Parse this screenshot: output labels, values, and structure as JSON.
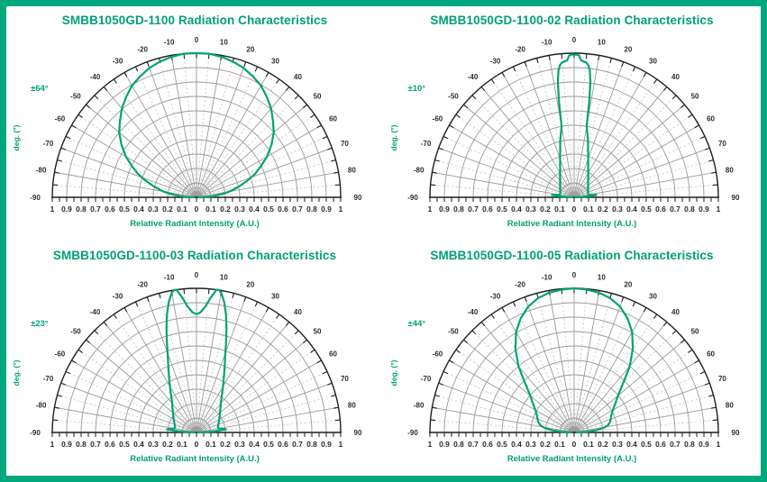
{
  "page": {
    "background": "#ffffff"
  },
  "colors": {
    "accent": "#00a077",
    "curve": "#00a376",
    "border": "#00a87e",
    "grid_major": "#9a9a9a",
    "grid_minor": "#c4c4c4",
    "axis": "#1f1f1f",
    "tick_text": "#2a2a2a",
    "angle_text": "#2e2e2e"
  },
  "chart_data": [
    {
      "type": "line",
      "coordinate_system": "polar-semicircle",
      "title": "SMBB1050GD-1100 Radiation Characteristics",
      "beam_half_angle_label": "±64°",
      "angle_axis": {
        "label": "deg. (°)",
        "tick_values": [
          -90,
          -80,
          -70,
          -60,
          -50,
          -40,
          -30,
          -20,
          -10,
          0,
          10,
          20,
          30,
          40,
          50,
          60,
          70,
          80,
          90
        ],
        "minor_tick_step": 5
      },
      "radius_axis": {
        "label": "Relative Radiant Intensity (A.U.)",
        "range": [
          0,
          1
        ],
        "tick_labels": [
          "1",
          "0.9",
          "0.8",
          "0.7",
          "0.6",
          "0.5",
          "0.4",
          "0.3",
          "0.2",
          "0.1",
          "0",
          "0.1",
          "0.2",
          "0.3",
          "0.4",
          "0.5",
          "0.6",
          "0.7",
          "0.8",
          "0.9",
          "1"
        ]
      },
      "series": [
        {
          "name": "relative radiant intensity",
          "points": [
            [
              -90,
              0.02
            ],
            [
              -88,
              0.07
            ],
            [
              -86,
              0.115
            ],
            [
              -83,
              0.175
            ],
            [
              -80,
              0.235
            ],
            [
              -76,
              0.3
            ],
            [
              -72,
              0.37
            ],
            [
              -68,
              0.44
            ],
            [
              -64,
              0.5
            ],
            [
              -60,
              0.565
            ],
            [
              -55,
              0.635
            ],
            [
              -50,
              0.7
            ],
            [
              -45,
              0.75
            ],
            [
              -40,
              0.805
            ],
            [
              -35,
              0.85
            ],
            [
              -30,
              0.895
            ],
            [
              -25,
              0.925
            ],
            [
              -20,
              0.955
            ],
            [
              -15,
              0.975
            ],
            [
              -10,
              0.99
            ],
            [
              -5,
              1.0
            ],
            [
              0,
              1.0
            ],
            [
              5,
              1.0
            ],
            [
              10,
              0.99
            ],
            [
              15,
              0.975
            ],
            [
              20,
              0.955
            ],
            [
              25,
              0.925
            ],
            [
              30,
              0.895
            ],
            [
              35,
              0.85
            ],
            [
              40,
              0.805
            ],
            [
              45,
              0.75
            ],
            [
              50,
              0.7
            ],
            [
              55,
              0.635
            ],
            [
              60,
              0.565
            ],
            [
              64,
              0.5
            ],
            [
              68,
              0.44
            ],
            [
              72,
              0.37
            ],
            [
              76,
              0.3
            ],
            [
              80,
              0.235
            ],
            [
              83,
              0.175
            ],
            [
              86,
              0.115
            ],
            [
              88,
              0.07
            ],
            [
              90,
              0.02
            ]
          ]
        }
      ]
    },
    {
      "type": "line",
      "coordinate_system": "polar-semicircle",
      "title": "SMBB1050GD-1100-02 Radiation Characteristics",
      "beam_half_angle_label": "±10°",
      "angle_axis": {
        "label": "deg. (°)",
        "tick_values": [
          -90,
          -80,
          -70,
          -60,
          -50,
          -40,
          -30,
          -20,
          -10,
          0,
          10,
          20,
          30,
          40,
          50,
          60,
          70,
          80,
          90
        ],
        "minor_tick_step": 5
      },
      "radius_axis": {
        "label": "Relative Radiant Intensity (A.U.)",
        "range": [
          0,
          1
        ],
        "tick_labels": [
          "1",
          "0.9",
          "0.8",
          "0.7",
          "0.6",
          "0.5",
          "0.4",
          "0.3",
          "0.2",
          "0.1",
          "0",
          "0.1",
          "0.2",
          "0.3",
          "0.4",
          "0.5",
          "0.6",
          "0.7",
          "0.8",
          "0.9",
          "1"
        ]
      },
      "series": [
        {
          "name": "relative radiant intensity",
          "points": [
            [
              -90,
              0.01
            ],
            [
              -88,
              0.05
            ],
            [
              -86,
              0.11
            ],
            [
              -84,
              0.155
            ],
            [
              -82,
              0.125
            ],
            [
              -80,
              0.104
            ],
            [
              -78,
              0.1
            ],
            [
              -74,
              0.1
            ],
            [
              -70,
              0.103
            ],
            [
              -65,
              0.107
            ],
            [
              -60,
              0.112
            ],
            [
              -55,
              0.118
            ],
            [
              -50,
              0.127
            ],
            [
              -45,
              0.137
            ],
            [
              -40,
              0.151
            ],
            [
              -35,
              0.17
            ],
            [
              -30,
              0.195
            ],
            [
              -25,
              0.23
            ],
            [
              -20,
              0.285
            ],
            [
              -18,
              0.315
            ],
            [
              -16,
              0.35
            ],
            [
              -14,
              0.4
            ],
            [
              -12,
              0.445
            ],
            [
              -10,
              0.5
            ],
            [
              -9,
              0.67
            ],
            [
              -8,
              0.81
            ],
            [
              -7,
              0.89
            ],
            [
              -6,
              0.925
            ],
            [
              -5,
              0.94
            ],
            [
              -4,
              0.945
            ],
            [
              -3,
              0.95
            ],
            [
              -2.5,
              0.965
            ],
            [
              -2,
              0.985
            ],
            [
              -1,
              0.99
            ],
            [
              0,
              0.99
            ],
            [
              1,
              0.99
            ],
            [
              2,
              0.985
            ],
            [
              2.5,
              0.965
            ],
            [
              3,
              0.95
            ],
            [
              4,
              0.945
            ],
            [
              5,
              0.94
            ],
            [
              6,
              0.925
            ],
            [
              7,
              0.89
            ],
            [
              8,
              0.81
            ],
            [
              9,
              0.67
            ],
            [
              10,
              0.5
            ],
            [
              12,
              0.445
            ],
            [
              14,
              0.4
            ],
            [
              16,
              0.35
            ],
            [
              18,
              0.315
            ],
            [
              20,
              0.285
            ],
            [
              25,
              0.23
            ],
            [
              30,
              0.195
            ],
            [
              35,
              0.17
            ],
            [
              40,
              0.151
            ],
            [
              45,
              0.137
            ],
            [
              50,
              0.127
            ],
            [
              55,
              0.118
            ],
            [
              60,
              0.112
            ],
            [
              65,
              0.107
            ],
            [
              70,
              0.103
            ],
            [
              74,
              0.1
            ],
            [
              78,
              0.1
            ],
            [
              80,
              0.104
            ],
            [
              82,
              0.125
            ],
            [
              84,
              0.155
            ],
            [
              86,
              0.11
            ],
            [
              88,
              0.05
            ],
            [
              90,
              0.01
            ]
          ]
        }
      ]
    },
    {
      "type": "line",
      "coordinate_system": "polar-semicircle",
      "title": "SMBB1050GD-1100-03 Radiation Characteristics",
      "beam_half_angle_label": "±23°",
      "angle_axis": {
        "label": "deg. (°)",
        "tick_values": [
          -90,
          -80,
          -70,
          -60,
          -50,
          -40,
          -30,
          -20,
          -10,
          0,
          10,
          20,
          30,
          40,
          50,
          60,
          70,
          80,
          90
        ],
        "minor_tick_step": 5
      },
      "radius_axis": {
        "label": "Relative Radiant Intensity (A.U.)",
        "range": [
          0,
          1
        ],
        "tick_labels": [
          "1",
          "0.9",
          "0.8",
          "0.7",
          "0.6",
          "0.5",
          "0.4",
          "0.3",
          "0.2",
          "0.1",
          "0",
          "0.1",
          "0.2",
          "0.3",
          "0.4",
          "0.5",
          "0.6",
          "0.7",
          "0.8",
          "0.9",
          "1"
        ]
      },
      "series": [
        {
          "name": "relative radiant intensity",
          "points": [
            [
              -90,
              0.01
            ],
            [
              -88,
              0.06
            ],
            [
              -86,
              0.13
            ],
            [
              -84,
              0.205
            ],
            [
              -82,
              0.185
            ],
            [
              -80,
              0.158
            ],
            [
              -78,
              0.152
            ],
            [
              -74,
              0.155
            ],
            [
              -70,
              0.161
            ],
            [
              -65,
              0.171
            ],
            [
              -60,
              0.183
            ],
            [
              -55,
              0.196
            ],
            [
              -50,
              0.212
            ],
            [
              -45,
              0.235
            ],
            [
              -40,
              0.262
            ],
            [
              -36,
              0.295
            ],
            [
              -32,
              0.34
            ],
            [
              -28,
              0.4
            ],
            [
              -25,
              0.455
            ],
            [
              -23,
              0.5
            ],
            [
              -20,
              0.585
            ],
            [
              -18,
              0.665
            ],
            [
              -16,
              0.755
            ],
            [
              -14,
              0.845
            ],
            [
              -12,
              0.925
            ],
            [
              -10,
              0.985
            ],
            [
              -9,
              1.0
            ],
            [
              -8,
              1.0
            ],
            [
              -6,
              0.94
            ],
            [
              -4,
              0.875
            ],
            [
              -2,
              0.835
            ],
            [
              0,
              0.82
            ],
            [
              2,
              0.835
            ],
            [
              4,
              0.875
            ],
            [
              6,
              0.94
            ],
            [
              8,
              1.0
            ],
            [
              9,
              1.0
            ],
            [
              10,
              0.985
            ],
            [
              12,
              0.925
            ],
            [
              14,
              0.845
            ],
            [
              16,
              0.755
            ],
            [
              18,
              0.665
            ],
            [
              20,
              0.585
            ],
            [
              23,
              0.5
            ],
            [
              25,
              0.455
            ],
            [
              28,
              0.4
            ],
            [
              32,
              0.34
            ],
            [
              36,
              0.295
            ],
            [
              40,
              0.262
            ],
            [
              45,
              0.235
            ],
            [
              50,
              0.212
            ],
            [
              55,
              0.196
            ],
            [
              60,
              0.183
            ],
            [
              65,
              0.171
            ],
            [
              70,
              0.161
            ],
            [
              74,
              0.155
            ],
            [
              78,
              0.152
            ],
            [
              80,
              0.158
            ],
            [
              82,
              0.185
            ],
            [
              84,
              0.205
            ],
            [
              86,
              0.13
            ],
            [
              88,
              0.06
            ],
            [
              90,
              0.01
            ]
          ]
        }
      ]
    },
    {
      "type": "line",
      "coordinate_system": "polar-semicircle",
      "title": "SMBB1050GD-1100-05 Radiation Characteristics",
      "beam_half_angle_label": "±44°",
      "angle_axis": {
        "label": "deg. (°)",
        "tick_values": [
          -90,
          -80,
          -70,
          -60,
          -50,
          -40,
          -30,
          -20,
          -10,
          0,
          10,
          20,
          30,
          40,
          50,
          60,
          70,
          80,
          90
        ],
        "minor_tick_step": 5
      },
      "radius_axis": {
        "label": "Relative Radiant Intensity (A.U.)",
        "range": [
          0,
          1
        ],
        "tick_labels": [
          "1",
          "0.9",
          "0.8",
          "0.7",
          "0.6",
          "0.5",
          "0.4",
          "0.3",
          "0.2",
          "0.1",
          "0",
          "0.1",
          "0.2",
          "0.3",
          "0.4",
          "0.5",
          "0.6",
          "0.7",
          "0.8",
          "0.9",
          "1"
        ]
      },
      "series": [
        {
          "name": "relative radiant intensity",
          "points": [
            [
              -90,
              0.02
            ],
            [
              -87,
              0.09
            ],
            [
              -84,
              0.16
            ],
            [
              -81,
              0.21
            ],
            [
              -78,
              0.24
            ],
            [
              -74,
              0.258
            ],
            [
              -70,
              0.27
            ],
            [
              -65,
              0.285
            ],
            [
              -60,
              0.31
            ],
            [
              -56,
              0.34
            ],
            [
              -52,
              0.375
            ],
            [
              -48,
              0.425
            ],
            [
              -44,
              0.5
            ],
            [
              -40,
              0.6
            ],
            [
              -35,
              0.71
            ],
            [
              -30,
              0.805
            ],
            [
              -25,
              0.875
            ],
            [
              -20,
              0.93
            ],
            [
              -15,
              0.965
            ],
            [
              -10,
              0.985
            ],
            [
              -5,
              0.995
            ],
            [
              0,
              1.0
            ],
            [
              5,
              0.995
            ],
            [
              10,
              0.985
            ],
            [
              15,
              0.965
            ],
            [
              20,
              0.93
            ],
            [
              25,
              0.875
            ],
            [
              30,
              0.805
            ],
            [
              35,
              0.71
            ],
            [
              40,
              0.6
            ],
            [
              44,
              0.5
            ],
            [
              48,
              0.425
            ],
            [
              52,
              0.375
            ],
            [
              56,
              0.34
            ],
            [
              60,
              0.31
            ],
            [
              65,
              0.285
            ],
            [
              70,
              0.27
            ],
            [
              74,
              0.258
            ],
            [
              78,
              0.24
            ],
            [
              81,
              0.21
            ],
            [
              84,
              0.16
            ],
            [
              87,
              0.09
            ],
            [
              90,
              0.02
            ]
          ]
        }
      ]
    }
  ]
}
